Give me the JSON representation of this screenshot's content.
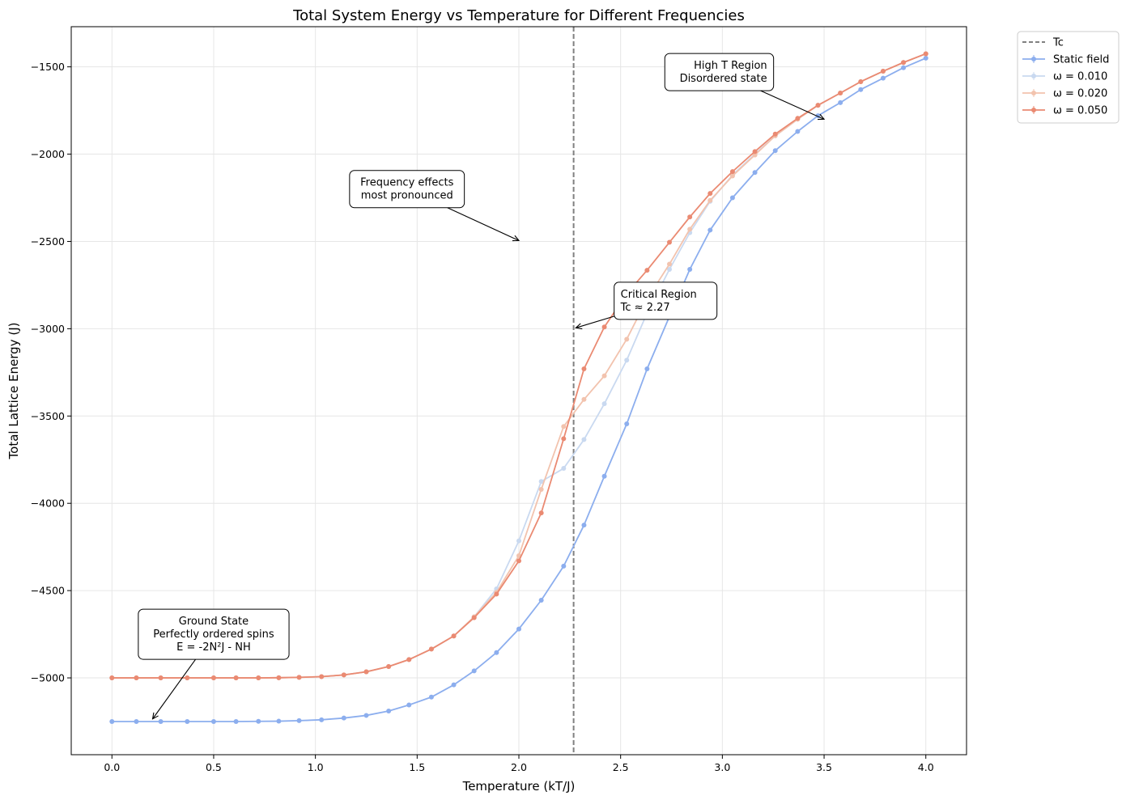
{
  "chart_data": {
    "type": "line",
    "title": "Total System Energy vs Temperature for Different Frequencies",
    "xlabel": "Temperature (kT/J)",
    "ylabel": "Total Lattice Energy (J)",
    "xlim": [
      -0.2,
      4.2
    ],
    "ylim": [
      -5440,
      -1270
    ],
    "xticks": [
      0.0,
      0.5,
      1.0,
      1.5,
      2.0,
      2.5,
      3.0,
      3.5,
      4.0
    ],
    "xtick_labels": [
      "0.0",
      "0.5",
      "1.0",
      "1.5",
      "2.0",
      "2.5",
      "3.0",
      "3.5",
      "4.0"
    ],
    "yticks": [
      -5000,
      -4500,
      -4000,
      -3500,
      -3000,
      -2500,
      -2000,
      -1500
    ],
    "ytick_labels": [
      "−5000",
      "−4500",
      "−4000",
      "−3500",
      "−3000",
      "−2500",
      "−2000",
      "−1500"
    ],
    "grid": true,
    "legend_position": "outside-top-right",
    "vline": {
      "x": 2.269,
      "label": "Tc",
      "color": "#808080"
    },
    "x": [
      0.0,
      0.1026,
      0.2051,
      0.3077,
      0.4103,
      0.5128,
      0.6154,
      0.7179,
      0.8205,
      0.9231,
      1.0256,
      1.1282,
      1.2308,
      1.3333,
      1.4359,
      1.5385,
      1.641,
      1.7436,
      1.8462,
      1.9487,
      2.0513,
      2.1538,
      2.2564,
      2.359,
      2.4615,
      2.5641,
      2.6667,
      2.7692,
      2.8718,
      2.9744,
      3.0769,
      3.1795,
      3.2821,
      3.3846,
      3.4872,
      3.5897,
      3.6923,
      3.7949,
      3.8974,
      4.0
    ],
    "x_offset_note": "",
    "series": [
      {
        "name": "Static field",
        "color": "#8caeee",
        "x": [
          0.0,
          0.12,
          0.24,
          0.37,
          0.5,
          0.61,
          0.72,
          0.82,
          0.92,
          1.03,
          1.14,
          1.25,
          1.36,
          1.46,
          1.57,
          1.68,
          1.78,
          1.89,
          2.0,
          2.11,
          2.22,
          2.32,
          2.42,
          2.53,
          2.63,
          2.74,
          2.84,
          2.94,
          3.05,
          3.16,
          3.26,
          3.37,
          3.47,
          3.58,
          3.68,
          3.79,
          3.89,
          4.0
        ],
        "values": [
          -5250,
          -5250,
          -5250,
          -5250,
          -5250,
          -5250,
          -5249,
          -5248,
          -5245,
          -5240,
          -5230,
          -5215,
          -5190,
          -5155,
          -5110,
          -5040,
          -4960,
          -4855,
          -4720,
          -4555,
          -4360,
          -4125,
          -3845,
          -3545,
          -3230,
          -2930,
          -2660,
          -2435,
          -2250,
          -2105,
          -1980,
          -1870,
          -1780,
          -1705,
          -1630,
          -1565,
          -1505,
          -1450
        ]
      },
      {
        "name": "ω = 0.010",
        "color": "#c9d9f0",
        "x": [
          0.0,
          0.12,
          0.24,
          0.37,
          0.5,
          0.61,
          0.72,
          0.82,
          0.92,
          1.03,
          1.14,
          1.25,
          1.36,
          1.46,
          1.57,
          1.68,
          1.78,
          1.89,
          2.0,
          2.11,
          2.22,
          2.32,
          2.42,
          2.53,
          2.63,
          2.74,
          2.84,
          2.94,
          3.05,
          3.16,
          3.26,
          3.37,
          3.47,
          3.58,
          3.68,
          3.79,
          3.89,
          4.0
        ],
        "values": [
          -5000,
          -5000,
          -5000,
          -5000,
          -5000,
          -5000,
          -5000,
          -4999,
          -4997,
          -4993,
          -4983,
          -4965,
          -4935,
          -4895,
          -4835,
          -4760,
          -4650,
          -4490,
          -4215,
          -3875,
          -3800,
          -3635,
          -3430,
          -3180,
          -2910,
          -2660,
          -2450,
          -2270,
          -2120,
          -2000,
          -1895,
          -1800,
          -1720,
          -1650,
          -1585,
          -1525,
          -1475,
          -1425
        ]
      },
      {
        "name": "ω = 0.020",
        "color": "#f2c3ae",
        "x": [
          0.0,
          0.12,
          0.24,
          0.37,
          0.5,
          0.61,
          0.72,
          0.82,
          0.92,
          1.03,
          1.14,
          1.25,
          1.36,
          1.46,
          1.57,
          1.68,
          1.78,
          1.89,
          2.0,
          2.11,
          2.22,
          2.32,
          2.42,
          2.53,
          2.63,
          2.74,
          2.84,
          2.94,
          3.05,
          3.16,
          3.26,
          3.37,
          3.47,
          3.58,
          3.68,
          3.79,
          3.89,
          4.0
        ],
        "values": [
          -5000,
          -5000,
          -5000,
          -5000,
          -5000,
          -5000,
          -5000,
          -4999,
          -4997,
          -4993,
          -4983,
          -4965,
          -4935,
          -4895,
          -4835,
          -4760,
          -4650,
          -4510,
          -4300,
          -3920,
          -3560,
          -3405,
          -3270,
          -3060,
          -2830,
          -2630,
          -2430,
          -2265,
          -2125,
          -2005,
          -1895,
          -1800,
          -1720,
          -1650,
          -1585,
          -1525,
          -1475,
          -1425
        ]
      },
      {
        "name": "ω = 0.050",
        "color": "#ea8a72",
        "x": [
          0.0,
          0.12,
          0.24,
          0.37,
          0.5,
          0.61,
          0.72,
          0.82,
          0.92,
          1.03,
          1.14,
          1.25,
          1.36,
          1.46,
          1.57,
          1.68,
          1.78,
          1.89,
          2.0,
          2.11,
          2.22,
          2.32,
          2.42,
          2.53,
          2.63,
          2.74,
          2.84,
          2.94,
          3.05,
          3.16,
          3.26,
          3.37,
          3.47,
          3.58,
          3.68,
          3.79,
          3.89,
          4.0
        ],
        "values": [
          -5000,
          -5000,
          -5000,
          -5000,
          -5000,
          -5000,
          -5000,
          -4999,
          -4997,
          -4993,
          -4983,
          -4965,
          -4935,
          -4895,
          -4835,
          -4760,
          -4655,
          -4520,
          -4330,
          -4055,
          -3630,
          -3230,
          -2990,
          -2800,
          -2665,
          -2505,
          -2360,
          -2225,
          -2100,
          -1985,
          -1885,
          -1795,
          -1720,
          -1650,
          -1585,
          -1525,
          -1475,
          -1425
        ]
      }
    ],
    "annotations": [
      {
        "lines": [
          "High T Region",
          "Disordered state"
        ],
        "align": "right",
        "text_at": [
          3.22,
          -1530
        ],
        "arrow_to": [
          3.5,
          -1800
        ]
      },
      {
        "lines": [
          "Frequency effects",
          "most pronounced"
        ],
        "align": "center",
        "text_at": [
          1.45,
          -2200
        ],
        "arrow_to": [
          2.0,
          -2495
        ]
      },
      {
        "lines": [
          "Critical Region",
          "Tc ≈ 2.27"
        ],
        "align": "left",
        "text_at": [
          2.5,
          -2840
        ],
        "arrow_to": [
          2.28,
          -2995
        ]
      },
      {
        "lines": [
          "Ground State",
          "Perfectly ordered spins",
          "E = -2N²J - NH"
        ],
        "align": "center",
        "text_at": [
          0.5,
          -4750
        ],
        "arrow_to": [
          0.2,
          -5235
        ]
      }
    ]
  }
}
